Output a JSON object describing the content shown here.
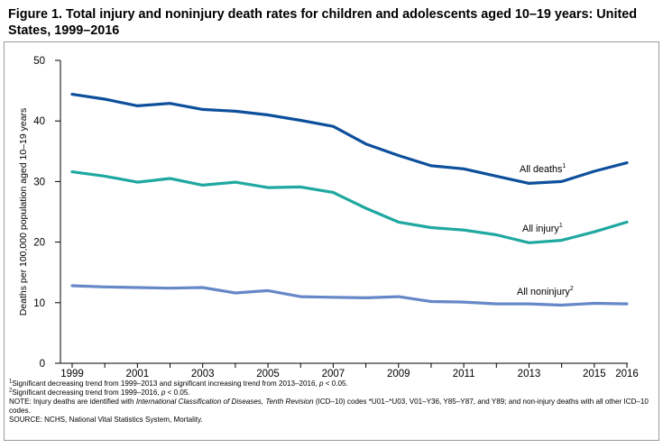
{
  "title": "Figure 1. Total injury and noninjury death rates for children and adolescents aged 10–19 years: United States, 1999–2016",
  "chart_data": {
    "type": "line",
    "title": "Figure 1. Total injury and noninjury death rates for children and adolescents aged 10–19 years: United States, 1999–2016",
    "xlabel": "",
    "ylabel": "Deaths per 100,000 population aged 10–19 years",
    "x": [
      1999,
      2000,
      2001,
      2002,
      2003,
      2004,
      2005,
      2006,
      2007,
      2008,
      2009,
      2010,
      2011,
      2012,
      2013,
      2014,
      2015,
      2016
    ],
    "xticks": [
      "1999",
      "2001",
      "2003",
      "2005",
      "2007",
      "2009",
      "2011",
      "2013",
      "2015",
      "2016"
    ],
    "xlim": [
      1999,
      2016
    ],
    "ylim": [
      0,
      50
    ],
    "yticks": [
      "0",
      "10",
      "20",
      "30",
      "40",
      "50"
    ],
    "grid": false,
    "series": [
      {
        "name": "All deaths",
        "label": "All deaths",
        "sup": "1",
        "color": "#0d4f9c",
        "values": [
          44.4,
          43.6,
          42.5,
          42.9,
          41.9,
          41.6,
          41.0,
          40.1,
          39.1,
          36.2,
          34.3,
          32.6,
          32.1,
          30.9,
          29.7,
          30.0,
          31.7,
          33.1
        ]
      },
      {
        "name": "All injury",
        "label": "All injury",
        "sup": "1",
        "color": "#1fa8a0",
        "values": [
          31.6,
          30.9,
          29.9,
          30.5,
          29.4,
          29.9,
          29.0,
          29.1,
          28.2,
          25.6,
          23.3,
          22.4,
          22.0,
          21.2,
          19.9,
          20.3,
          21.7,
          23.3
        ]
      },
      {
        "name": "All noninjury",
        "label": "All noninjury",
        "sup": "2",
        "color": "#6688c8",
        "values": [
          12.8,
          12.6,
          12.5,
          12.4,
          12.5,
          11.6,
          12.0,
          11.0,
          10.9,
          10.8,
          11.0,
          10.2,
          10.1,
          9.8,
          9.8,
          9.6,
          9.9,
          9.8
        ]
      }
    ]
  },
  "footnotes": {
    "note1_sup": "1",
    "note1": "Significant decreasing trend from 1999–2013 and significant increasing trend from 2013–2016, ",
    "note1_p": "p",
    "note1_end": " < 0.05.",
    "note2_sup": "2",
    "note2": "Significant decreasing trend from 1999–2016, ",
    "note2_p": "p",
    "note2_end": " < 0.05.",
    "note3_a": "NOTE: Injury deaths are identified with ",
    "note3_b": "International Classification of Diseases, Tenth Revision",
    "note3_c": " (ICD–10) codes *U01–*U03, V01–Y36, Y85–Y87, and Y89; and non-injury deaths with all other ICD–10 codes.",
    "source": "SOURCE: NCHS, National Vital Statistics System, Mortality."
  }
}
